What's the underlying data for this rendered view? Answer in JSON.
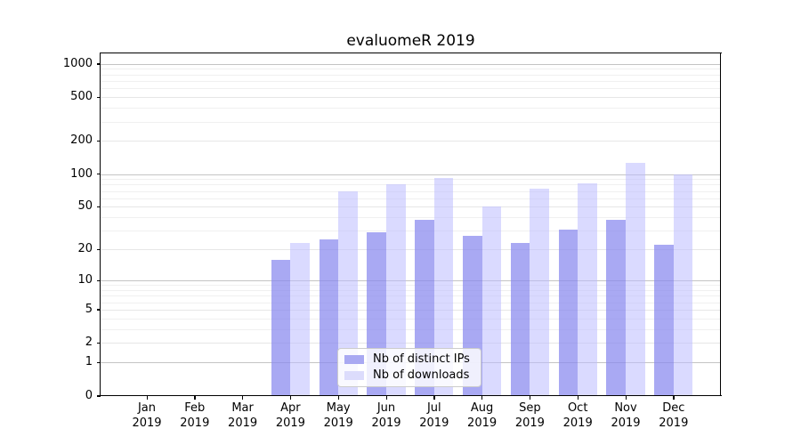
{
  "figure": {
    "title": "evaluomeR 2019",
    "background": "#ffffff"
  },
  "legend": {
    "items": [
      {
        "label": "Nb of distinct IPs",
        "swatch_color": "#a9a9f2"
      },
      {
        "label": "Nb of downloads",
        "swatch_color": "#dcdcfc"
      }
    ]
  },
  "colors": {
    "bar_ips": "rgba(136,136,238,0.72)",
    "bar_downloads": "rgba(187,187,255,0.55)",
    "grid_decade": "#c4c4c4",
    "grid_major": "#e6e6e6",
    "grid_minor": "#f0f0f0",
    "axis": "#000000"
  },
  "y_axis": {
    "tick_values": [
      0,
      1,
      2,
      5,
      10,
      20,
      50,
      100,
      200,
      500,
      1000
    ],
    "tick_labels": [
      "0",
      "1",
      "2",
      "5",
      "10",
      "20",
      "50",
      "100",
      "200",
      "500",
      "1000"
    ],
    "decade_values": [
      1,
      10,
      100,
      1000
    ],
    "minor_tick_values": [
      3,
      4,
      6,
      7,
      8,
      9,
      30,
      40,
      60,
      70,
      80,
      90,
      300,
      400,
      600,
      700,
      800,
      900
    ]
  },
  "x_axis": {
    "labels": [
      {
        "month": "Jan",
        "year": "2019"
      },
      {
        "month": "Feb",
        "year": "2019"
      },
      {
        "month": "Mar",
        "year": "2019"
      },
      {
        "month": "Apr",
        "year": "2019"
      },
      {
        "month": "May",
        "year": "2019"
      },
      {
        "month": "Jun",
        "year": "2019"
      },
      {
        "month": "Jul",
        "year": "2019"
      },
      {
        "month": "Aug",
        "year": "2019"
      },
      {
        "month": "Sep",
        "year": "2019"
      },
      {
        "month": "Oct",
        "year": "2019"
      },
      {
        "month": "Nov",
        "year": "2019"
      },
      {
        "month": "Dec",
        "year": "2019"
      }
    ]
  },
  "chart_data": {
    "type": "bar",
    "title": "evaluomeR 2019",
    "categories": [
      "Jan 2019",
      "Feb 2019",
      "Mar 2019",
      "Apr 2019",
      "May 2019",
      "Jun 2019",
      "Jul 2019",
      "Aug 2019",
      "Sep 2019",
      "Oct 2019",
      "Nov 2019",
      "Dec 2019"
    ],
    "series": [
      {
        "name": "Nb of distinct IPs",
        "color": "#8888ee",
        "values": [
          0,
          0,
          0,
          16,
          25,
          29,
          38,
          27,
          23,
          31,
          38,
          22
        ]
      },
      {
        "name": "Nb of downloads",
        "color": "#bbbbff",
        "values": [
          0,
          0,
          0,
          23,
          70,
          80,
          92,
          50,
          73,
          82,
          126,
          100
        ]
      }
    ],
    "xlabel": "",
    "ylabel": "",
    "y_scale": "logarithmic-like: y proportional to log10(value+1), 0 shown at baseline",
    "y_ticks": [
      0,
      1,
      2,
      5,
      10,
      20,
      50,
      100,
      200,
      500,
      1000
    ],
    "ylim": [
      0,
      1250
    ],
    "grid": "horizontal major and minor gridlines",
    "legend_position": "lower center inside plot"
  }
}
